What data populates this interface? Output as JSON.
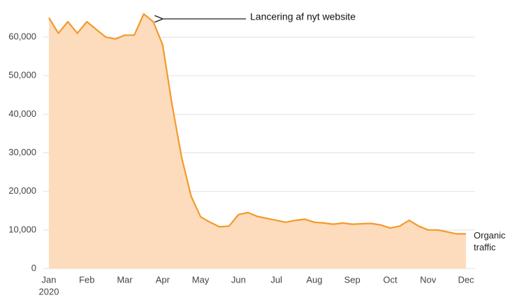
{
  "chart_data": {
    "type": "area",
    "categories": [
      "Jan",
      null,
      null,
      null,
      "Feb",
      null,
      null,
      null,
      "Mar",
      null,
      null,
      null,
      "Apr",
      null,
      null,
      null,
      "May",
      null,
      null,
      null,
      "Jun",
      null,
      null,
      null,
      "Jul",
      null,
      null,
      null,
      "Aug",
      null,
      null,
      null,
      "Sep",
      null,
      null,
      null,
      "Oct",
      null,
      null,
      null,
      "Nov",
      null,
      null,
      null,
      "Dec"
    ],
    "year_label": "2020",
    "series": [
      {
        "name": "Organic traffic",
        "color": "#f39a2b",
        "fill": "#fcdcbc",
        "values": [
          65000,
          61000,
          64000,
          61000,
          64000,
          62000,
          60000,
          59500,
          60500,
          60500,
          66000,
          64000,
          58000,
          42400,
          28800,
          18800,
          13400,
          12000,
          10800,
          11000,
          14000,
          14500,
          13500,
          13000,
          12500,
          12000,
          12500,
          12800,
          12000,
          11800,
          11500,
          11800,
          11500,
          11600,
          11700,
          11300,
          10500,
          11000,
          12500,
          11000,
          10000,
          10000,
          9500,
          9000,
          9000
        ]
      }
    ],
    "ylim": [
      0,
      66000
    ],
    "yticks": [
      0,
      {
        "value": 10000,
        "label": "10,000"
      },
      {
        "value": 20000,
        "label": "20,000"
      },
      {
        "value": 30000,
        "label": "30,000"
      },
      {
        "value": 40000,
        "label": "40,000"
      },
      {
        "value": 50000,
        "label": "50,000"
      },
      {
        "value": 60000,
        "label": "60,000"
      }
    ],
    "grid": true,
    "annotation": "Lancering af nyt website"
  }
}
